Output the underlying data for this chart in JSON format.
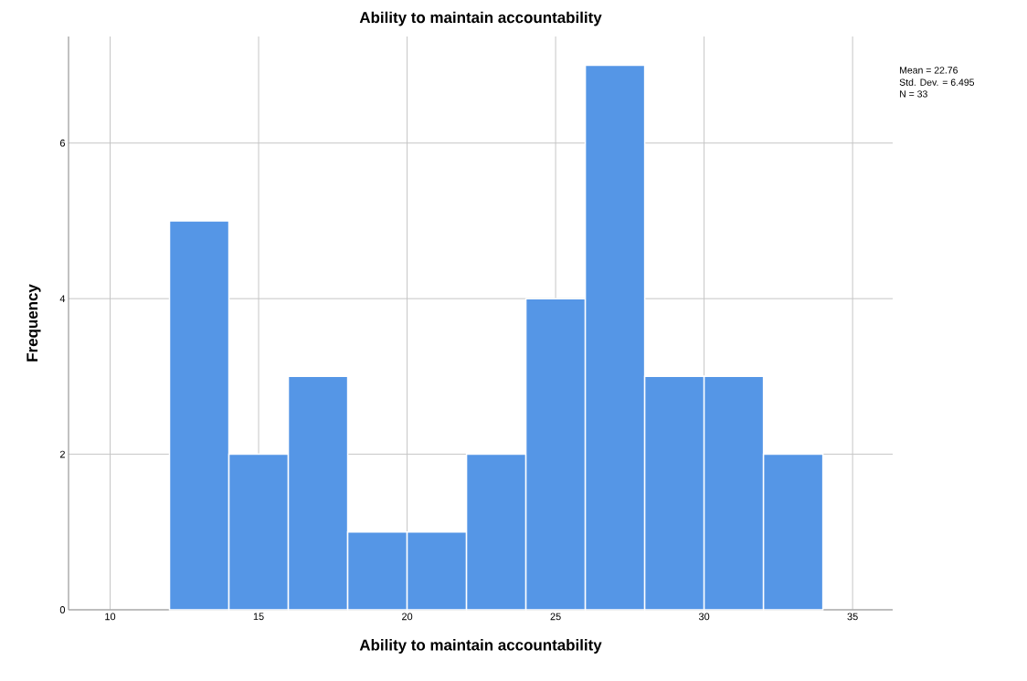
{
  "chart_data": {
    "type": "histogram",
    "title": "Ability to maintain accountability",
    "xlabel": "Ability to maintain accountability",
    "ylabel": "Frequency",
    "bins": [
      12,
      14,
      16,
      18,
      20,
      22,
      24,
      26,
      28,
      30,
      32,
      34
    ],
    "values": [
      5,
      2,
      3,
      1,
      1,
      2,
      4,
      7,
      3,
      3,
      2
    ],
    "color": "#5596e6",
    "xlim": [
      8.6,
      36.35
    ],
    "ylim": [
      0,
      7.37
    ],
    "xticks": [
      10,
      15,
      20,
      25,
      30,
      35
    ],
    "yticks": [
      0,
      2,
      4,
      6
    ],
    "grid": true,
    "annotations": [
      "Mean = 22.76",
      "Std. Dev. = 6.495",
      "N = 33"
    ]
  }
}
